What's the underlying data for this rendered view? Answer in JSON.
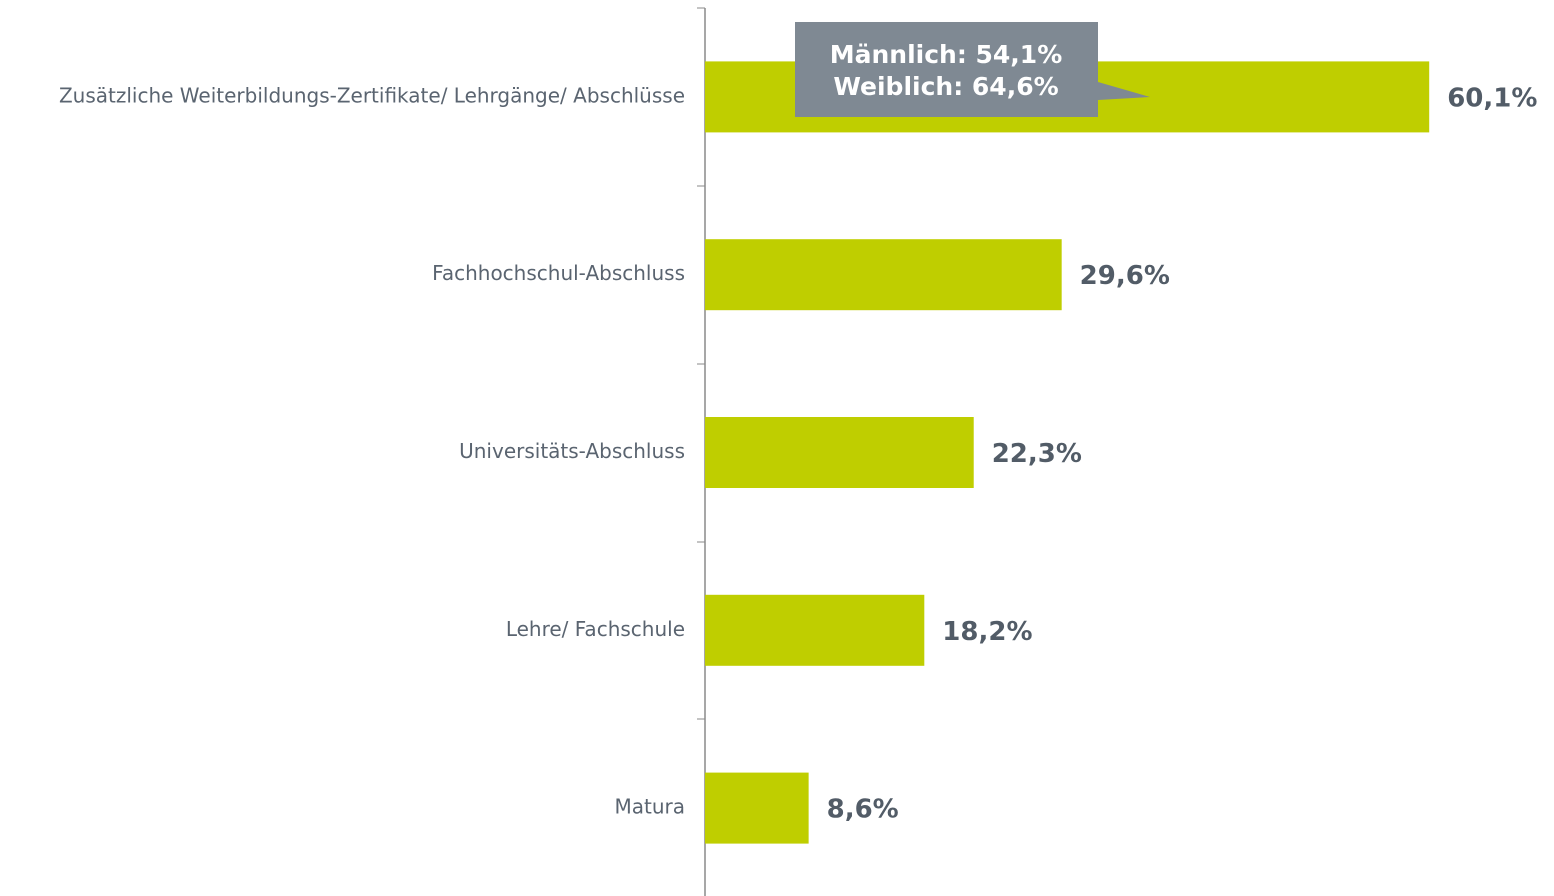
{
  "chart_data": {
    "type": "hbar",
    "categories": [
      "Zusätzliche Weiterbildungs-Zertifikate/ Lehrgänge/ Abschlüsse",
      "Fachhochschul-Abschluss",
      "Universitäts-Abschluss",
      "Lehre/ Fachschule",
      "Matura"
    ],
    "values": [
      60.1,
      29.6,
      22.3,
      18.2,
      8.6
    ],
    "value_labels": [
      "60,1%",
      "29,6%",
      "22,3%",
      "18,2%",
      "8,6%"
    ],
    "color": "#bfce00",
    "annotations": [
      "Männlich: 54,1%",
      "Weiblich: 64,6%"
    ]
  }
}
